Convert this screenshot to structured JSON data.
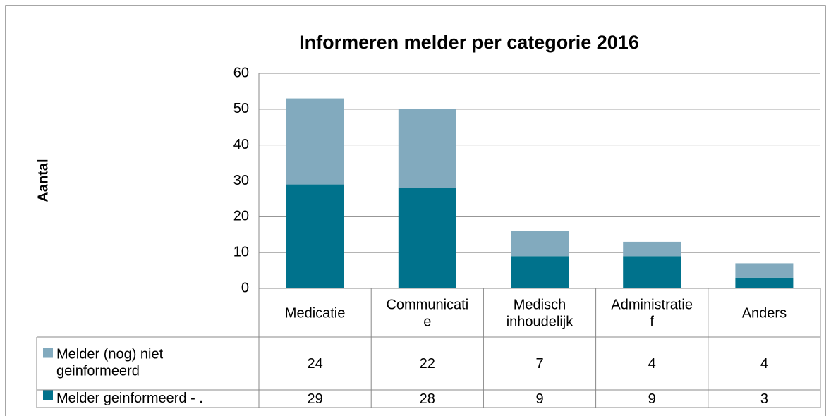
{
  "chart_data": {
    "type": "stacked_bar",
    "title": "Informeren melder per categorie 2016",
    "ylabel": "Aantal",
    "categories": [
      "Medicatie",
      "Communicatie",
      "Medisch inhoudelijk",
      "Administratief",
      "Anders"
    ],
    "series": [
      {
        "name": "Melder (nog) niet geinformeerd",
        "color": "#82aabe",
        "values": [
          24,
          22,
          7,
          4,
          4
        ]
      },
      {
        "name": "Melder geinformeerd - .",
        "color": "#00728c",
        "values": [
          29,
          28,
          9,
          9,
          3
        ]
      }
    ],
    "ylim": [
      0,
      60
    ],
    "yticks": [
      0,
      10,
      20,
      30,
      40,
      50,
      60
    ],
    "grid": true
  }
}
